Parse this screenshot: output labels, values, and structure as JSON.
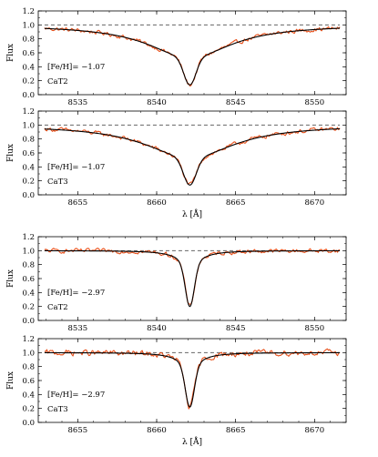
{
  "colors": {
    "observed": "#e8501a",
    "model": "#000000",
    "continuum": "#666666"
  },
  "chart_data": [
    {
      "type": "line",
      "ylabel": "Flux",
      "xlabel": "",
      "xlim": [
        8532.5,
        8552.0
      ],
      "ylim": [
        0.0,
        1.2
      ],
      "xticks": [
        8535,
        8540,
        8545,
        8550
      ],
      "yticks": [
        0.0,
        0.2,
        0.4,
        0.6,
        0.8,
        1.0,
        1.2
      ],
      "line_center": 8542.1,
      "feh_label": "[Fe/H]= −1.07",
      "line_label": "CaT2",
      "continuum": 1.0,
      "model_profile": {
        "depth": 0.86,
        "core_width": 0.38,
        "wing_width": 3.2,
        "wing_fraction": 0.55
      },
      "observed_noise": 0.025
    },
    {
      "type": "line",
      "ylabel": "Flux",
      "xlabel": "λ [Å]",
      "xlim": [
        8652.5,
        8672.0
      ],
      "ylim": [
        0.0,
        1.2
      ],
      "xticks": [
        8655,
        8660,
        8665,
        8670
      ],
      "yticks": [
        0.0,
        0.2,
        0.4,
        0.6,
        0.8,
        1.0,
        1.2
      ],
      "line_center": 8662.1,
      "feh_label": "[Fe/H]= −1.07",
      "line_label": "CaT3",
      "continuum": 1.0,
      "model_profile": {
        "depth": 0.86,
        "core_width": 0.4,
        "wing_width": 3.4,
        "wing_fraction": 0.55
      },
      "observed_noise": 0.025
    },
    {
      "type": "line",
      "ylabel": "Flux",
      "xlabel": "",
      "xlim": [
        8532.5,
        8552.0
      ],
      "ylim": [
        0.0,
        1.2
      ],
      "xticks": [
        8535,
        8540,
        8545,
        8550
      ],
      "yticks": [
        0.0,
        0.2,
        0.4,
        0.6,
        0.8,
        1.0,
        1.2
      ],
      "line_center": 8542.1,
      "feh_label": "[Fe/H]= −2.97",
      "line_label": "CaT2",
      "continuum": 1.0,
      "model_profile": {
        "depth": 0.8,
        "core_width": 0.28,
        "wing_width": 0.9,
        "wing_fraction": 0.25
      },
      "observed_noise": 0.025
    },
    {
      "type": "line",
      "ylabel": "Flux",
      "xlabel": "λ [Å]",
      "xlim": [
        8652.5,
        8672.0
      ],
      "ylim": [
        0.0,
        1.2
      ],
      "xticks": [
        8655,
        8660,
        8665,
        8670
      ],
      "yticks": [
        0.0,
        0.2,
        0.4,
        0.6,
        0.8,
        1.0,
        1.2
      ],
      "line_center": 8662.1,
      "feh_label": "[Fe/H]= −2.97",
      "line_label": "CaT3",
      "continuum": 1.0,
      "model_profile": {
        "depth": 0.78,
        "core_width": 0.28,
        "wing_width": 0.9,
        "wing_fraction": 0.25
      },
      "observed_noise": 0.035
    }
  ]
}
